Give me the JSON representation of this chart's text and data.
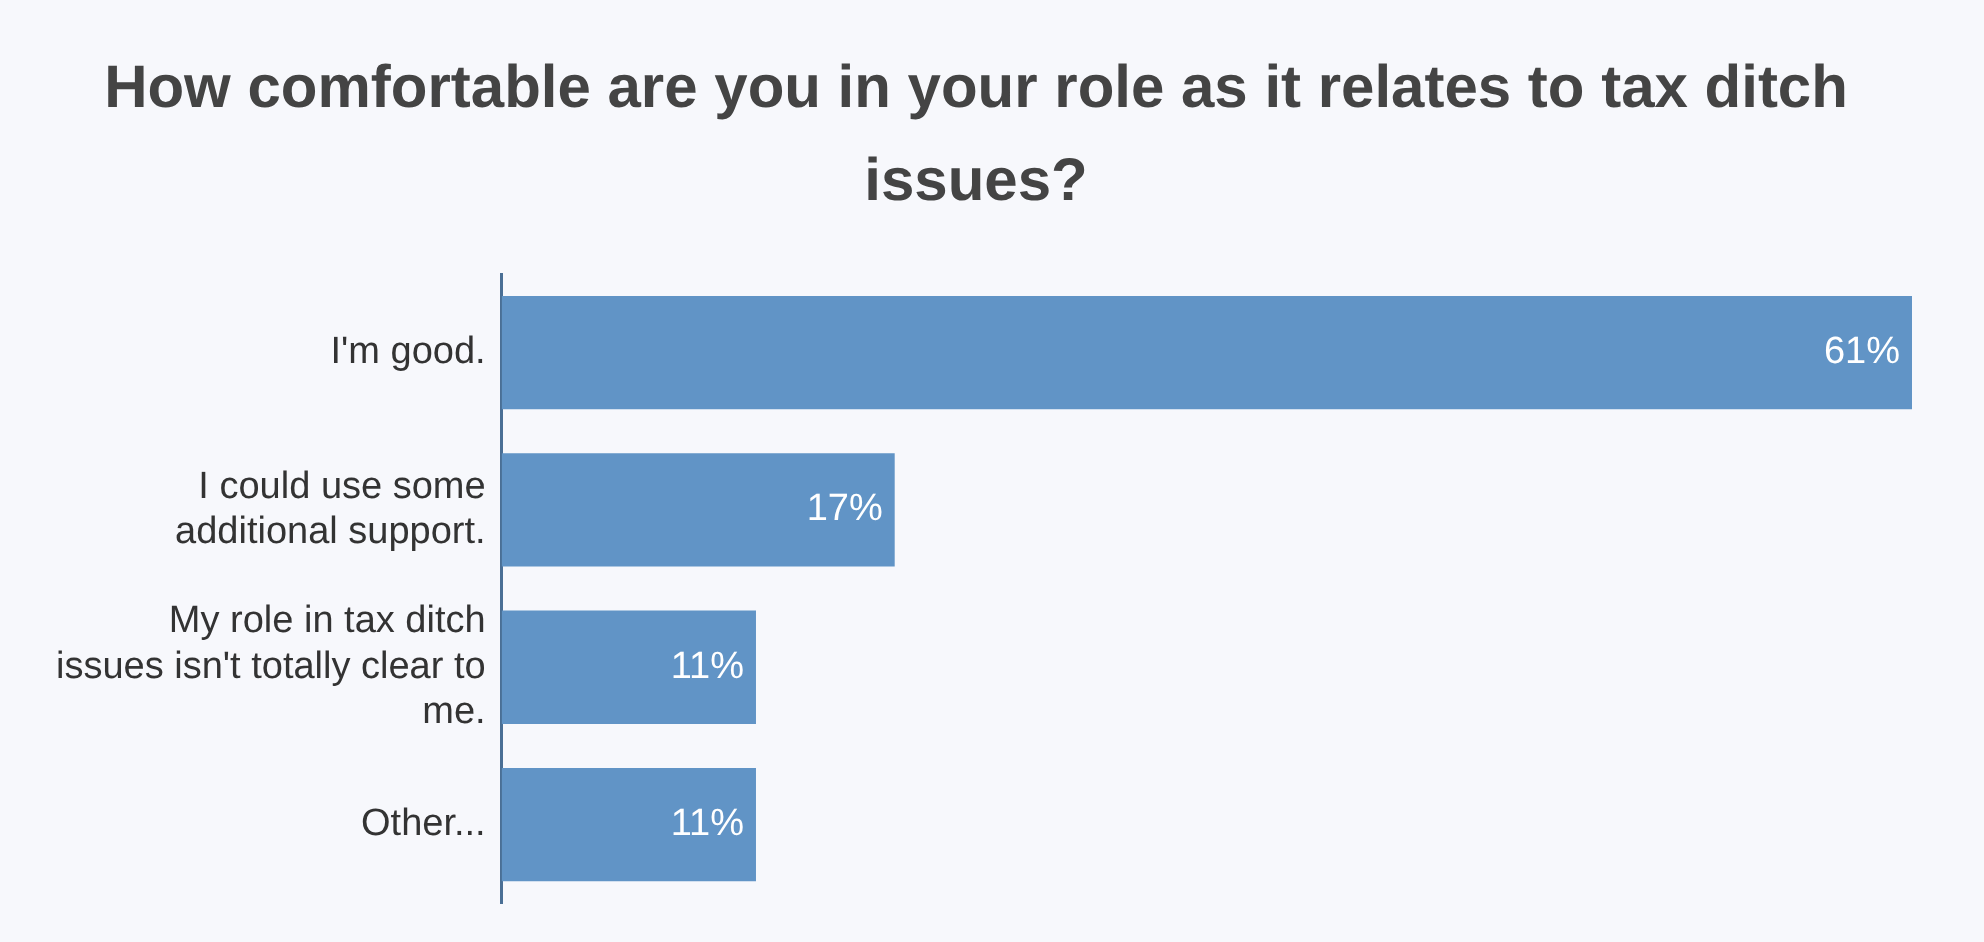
{
  "chart_data": {
    "type": "bar",
    "orientation": "horizontal",
    "xlim": [
      0,
      61
    ],
    "tick_labels": "y",
    "title": "How comfortable are you in your role as it relates to tax ditch issues?",
    "categories": [
      "I'm good.",
      "I could use some additional support.",
      "My role in tax ditch issues isn't totally clear to me.",
      "Other..."
    ],
    "values": [
      61,
      17,
      11,
      11
    ],
    "value_labels": [
      "61%",
      "17%",
      "11%",
      "11%"
    ],
    "color": "#6194c6"
  }
}
